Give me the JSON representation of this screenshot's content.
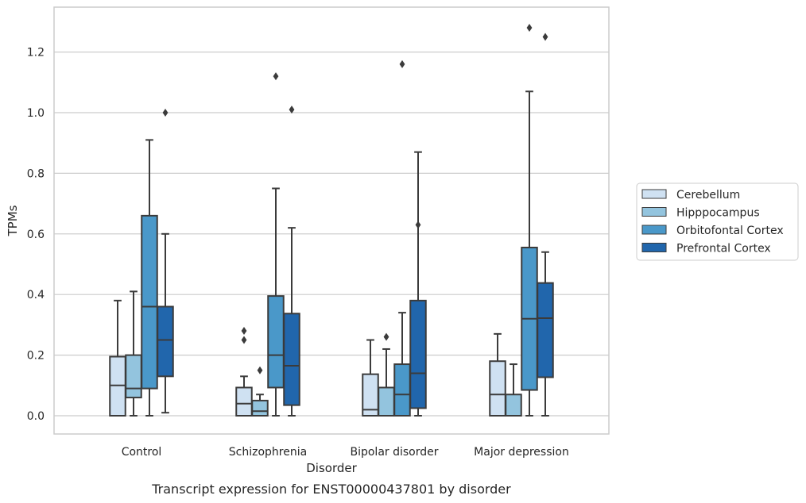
{
  "chart_data": {
    "type": "box",
    "caption": "Transcript expression for ENST00000437801 by disorder",
    "xlabel": "Disorder",
    "ylabel": "TPMs",
    "ylim": [
      -0.062,
      1.35
    ],
    "yticks": [
      "0.0",
      "0.2",
      "0.4",
      "0.6",
      "0.8",
      "1.0",
      "1.2"
    ],
    "grid": "horizontal",
    "legend_position": "right",
    "categories": [
      "Control",
      "Schizophrenia",
      "Bipolar disorder",
      "Major depression"
    ],
    "series": [
      {
        "name": "Cerebellum",
        "color": "#cfe1f2",
        "boxes": [
          {
            "whislo": 0.0,
            "q1": 0.0,
            "med": 0.1,
            "q3": 0.195,
            "whishi": 0.38,
            "fliers": []
          },
          {
            "whislo": 0.0,
            "q1": 0.0,
            "med": 0.04,
            "q3": 0.093,
            "whishi": 0.13,
            "fliers": [
              0.25,
              0.28
            ]
          },
          {
            "whislo": 0.0,
            "q1": 0.0,
            "med": 0.02,
            "q3": 0.137,
            "whishi": 0.25,
            "fliers": []
          },
          {
            "whislo": 0.0,
            "q1": 0.0,
            "med": 0.07,
            "q3": 0.18,
            "whishi": 0.27,
            "fliers": []
          }
        ]
      },
      {
        "name": "Hipppocampus",
        "color": "#93c4de",
        "boxes": [
          {
            "whislo": 0.0,
            "q1": 0.06,
            "med": 0.09,
            "q3": 0.2,
            "whishi": 0.41,
            "fliers": []
          },
          {
            "whislo": 0.0,
            "q1": 0.0,
            "med": 0.015,
            "q3": 0.05,
            "whishi": 0.07,
            "fliers": [
              0.15
            ]
          },
          {
            "whislo": 0.0,
            "q1": 0.0,
            "med": 0.0,
            "q3": 0.093,
            "whishi": 0.22,
            "fliers": [
              0.26
            ]
          },
          {
            "whislo": 0.0,
            "q1": 0.0,
            "med": 0.0,
            "q3": 0.07,
            "whishi": 0.17,
            "fliers": []
          }
        ]
      },
      {
        "name": "Orbitofontal Cortex",
        "color": "#4a98c9",
        "boxes": [
          {
            "whislo": 0.0,
            "q1": 0.09,
            "med": 0.36,
            "q3": 0.66,
            "whishi": 0.91,
            "fliers": []
          },
          {
            "whislo": 0.0,
            "q1": 0.093,
            "med": 0.2,
            "q3": 0.395,
            "whishi": 0.75,
            "fliers": [
              1.12
            ]
          },
          {
            "whislo": 0.0,
            "q1": 0.0,
            "med": 0.07,
            "q3": 0.17,
            "whishi": 0.34,
            "fliers": [
              1.16
            ]
          },
          {
            "whislo": 0.0,
            "q1": 0.085,
            "med": 0.32,
            "q3": 0.555,
            "whishi": 1.07,
            "fliers": [
              1.28
            ]
          }
        ]
      },
      {
        "name": "Prefrontal Cortex",
        "color": "#2166ac",
        "boxes": [
          {
            "whislo": 0.01,
            "q1": 0.13,
            "med": 0.25,
            "q3": 0.36,
            "whishi": 0.6,
            "fliers": [
              1.0
            ]
          },
          {
            "whislo": 0.0,
            "q1": 0.035,
            "med": 0.165,
            "q3": 0.337,
            "whishi": 0.62,
            "fliers": [
              1.01
            ]
          },
          {
            "whislo": 0.0,
            "q1": 0.025,
            "med": 0.14,
            "q3": 0.38,
            "whishi": 0.87,
            "fliers": [
              0.63
            ]
          },
          {
            "whislo": 0.0,
            "q1": 0.127,
            "med": 0.322,
            "q3": 0.438,
            "whishi": 0.54,
            "fliers": [
              1.25
            ]
          }
        ]
      }
    ]
  }
}
